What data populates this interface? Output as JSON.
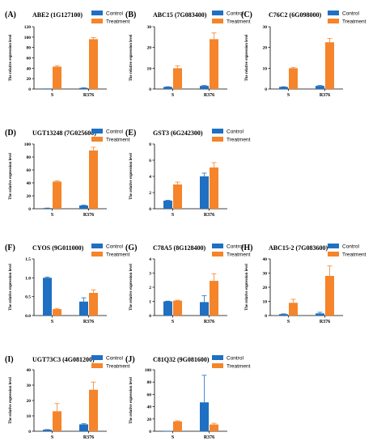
{
  "colors": {
    "control": "#1f6fc2",
    "treatment": "#f5842a",
    "axis": "#000000"
  },
  "chart_data": [
    {
      "type": "bar",
      "panel": "(A)",
      "title": "ABE2 (1G127100)",
      "ylabel": "The relative expression level",
      "categories": [
        "S",
        "R376"
      ],
      "ylim": [
        0,
        120
      ],
      "yticks": [
        0,
        20,
        40,
        60,
        80,
        100,
        120
      ],
      "legend": [
        "Control",
        "Treatment"
      ],
      "series": [
        {
          "name": "Control",
          "values": [
            1,
            2
          ],
          "errors": [
            0,
            0.3
          ]
        },
        {
          "name": "Treatment",
          "values": [
            43,
            96
          ],
          "errors": [
            2,
            3
          ]
        }
      ]
    },
    {
      "type": "bar",
      "panel": "(B)",
      "title": "ABC15 (7G083400)",
      "ylabel": "The relative expression level",
      "categories": [
        "S",
        "R376"
      ],
      "ylim": [
        0,
        30
      ],
      "yticks": [
        0,
        10,
        20,
        30
      ],
      "legend": [
        "Control",
        "Treatment"
      ],
      "series": [
        {
          "name": "Control",
          "values": [
            1,
            1.5
          ],
          "errors": [
            0.1,
            0.2
          ]
        },
        {
          "name": "Treatment",
          "values": [
            10,
            24
          ],
          "errors": [
            1.2,
            3
          ]
        }
      ]
    },
    {
      "type": "bar",
      "panel": "(C)",
      "title": "C76C2 (6G098000)",
      "ylabel": "The relative expression level",
      "categories": [
        "S",
        "R376"
      ],
      "ylim": [
        0,
        30
      ],
      "yticks": [
        0,
        10,
        20,
        30
      ],
      "legend": [
        "Control",
        "Treatment"
      ],
      "series": [
        {
          "name": "Control",
          "values": [
            1,
            1.5
          ],
          "errors": [
            0.1,
            0.2
          ]
        },
        {
          "name": "Treatment",
          "values": [
            10,
            22.5
          ],
          "errors": [
            0.4,
            1.8
          ]
        }
      ]
    },
    {
      "type": "bar",
      "panel": "(D)",
      "title": "UGT13248 (7G025600)",
      "ylabel": "The relative expression level",
      "categories": [
        "S",
        "R376"
      ],
      "ylim": [
        0,
        100
      ],
      "yticks": [
        0,
        20,
        40,
        60,
        80,
        100
      ],
      "legend": [
        "Control",
        "Treatment"
      ],
      "series": [
        {
          "name": "Control",
          "values": [
            1,
            5
          ],
          "errors": [
            0.1,
            0.5
          ]
        },
        {
          "name": "Treatment",
          "values": [
            42,
            90
          ],
          "errors": [
            1,
            5
          ]
        }
      ]
    },
    {
      "type": "bar",
      "panel": "(E)",
      "title": "GST3 (6G242300)",
      "ylabel": "The relative expression level",
      "categories": [
        "S",
        "R376"
      ],
      "ylim": [
        0,
        8
      ],
      "yticks": [
        0,
        2,
        4,
        6,
        8
      ],
      "legend": [
        "Control",
        "Treatment"
      ],
      "series": [
        {
          "name": "Control",
          "values": [
            1,
            4
          ],
          "errors": [
            0.05,
            0.4
          ]
        },
        {
          "name": "Treatment",
          "values": [
            3,
            5.1
          ],
          "errors": [
            0.3,
            0.6
          ]
        }
      ]
    },
    {
      "type": "bar",
      "panel": "(F)",
      "title": "CYOS (9G011000)",
      "ylabel": "The relative expression level",
      "categories": [
        "S",
        "R376"
      ],
      "ylim": [
        0,
        1.5
      ],
      "yticks": [
        0.0,
        0.5,
        1.0,
        1.5
      ],
      "ytick_labels": [
        "0.0",
        "0.5",
        "1.0",
        "1.5"
      ],
      "legend": [
        "Control",
        "Treatment"
      ],
      "series": [
        {
          "name": "Control",
          "values": [
            1.0,
            0.37
          ],
          "errors": [
            0.02,
            0.1
          ]
        },
        {
          "name": "Treatment",
          "values": [
            0.17,
            0.6
          ],
          "errors": [
            0.02,
            0.08
          ]
        }
      ]
    },
    {
      "type": "bar",
      "panel": "(G)",
      "title": "C78A5 (8G128400)",
      "ylabel": "The relative expression level",
      "categories": [
        "S",
        "R376"
      ],
      "ylim": [
        0,
        4
      ],
      "yticks": [
        0,
        1,
        2,
        3,
        4
      ],
      "legend": [
        "Control",
        "Treatment"
      ],
      "series": [
        {
          "name": "Control",
          "values": [
            1,
            0.95
          ],
          "errors": [
            0.02,
            0.45
          ]
        },
        {
          "name": "Treatment",
          "values": [
            1.05,
            2.45
          ],
          "errors": [
            0.03,
            0.5
          ]
        }
      ]
    },
    {
      "type": "bar",
      "panel": "(H)",
      "title": "ABC15-2 (7G083600)",
      "ylabel": "The relative expression level",
      "categories": [
        "S",
        "R376"
      ],
      "ylim": [
        0,
        40
      ],
      "yticks": [
        0,
        10,
        20,
        30,
        40
      ],
      "legend": [
        "Control",
        "Treatment"
      ],
      "series": [
        {
          "name": "Control",
          "values": [
            1,
            1.5
          ],
          "errors": [
            0.2,
            0.8
          ]
        },
        {
          "name": "Treatment",
          "values": [
            9,
            28
          ],
          "errors": [
            2.5,
            7
          ]
        }
      ]
    },
    {
      "type": "bar",
      "panel": "(I)",
      "title": "UGT73C3 (4G081200)",
      "ylabel": "The relative expression level",
      "categories": [
        "S",
        "R376"
      ],
      "ylim": [
        0,
        40
      ],
      "yticks": [
        0,
        10,
        20,
        30,
        40
      ],
      "legend": [
        "Control",
        "Treatment"
      ],
      "series": [
        {
          "name": "Control",
          "values": [
            1,
            4.5
          ],
          "errors": [
            0.1,
            0.4
          ]
        },
        {
          "name": "Treatment",
          "values": [
            13,
            27
          ],
          "errors": [
            5,
            5
          ]
        }
      ]
    },
    {
      "type": "bar",
      "panel": "(J)",
      "title": "C81Q32 (9G081600)",
      "ylabel": "The relative expression level",
      "categories": [
        "S",
        "R376"
      ],
      "ylim": [
        0,
        100
      ],
      "yticks": [
        0,
        20,
        40,
        60,
        80,
        100
      ],
      "legend": [
        "Control",
        "Treatment"
      ],
      "series": [
        {
          "name": "Control",
          "values": [
            0.5,
            47
          ],
          "errors": [
            0,
            44
          ]
        },
        {
          "name": "Treatment",
          "values": [
            16,
            11
          ],
          "errors": [
            1,
            2
          ]
        }
      ]
    }
  ]
}
